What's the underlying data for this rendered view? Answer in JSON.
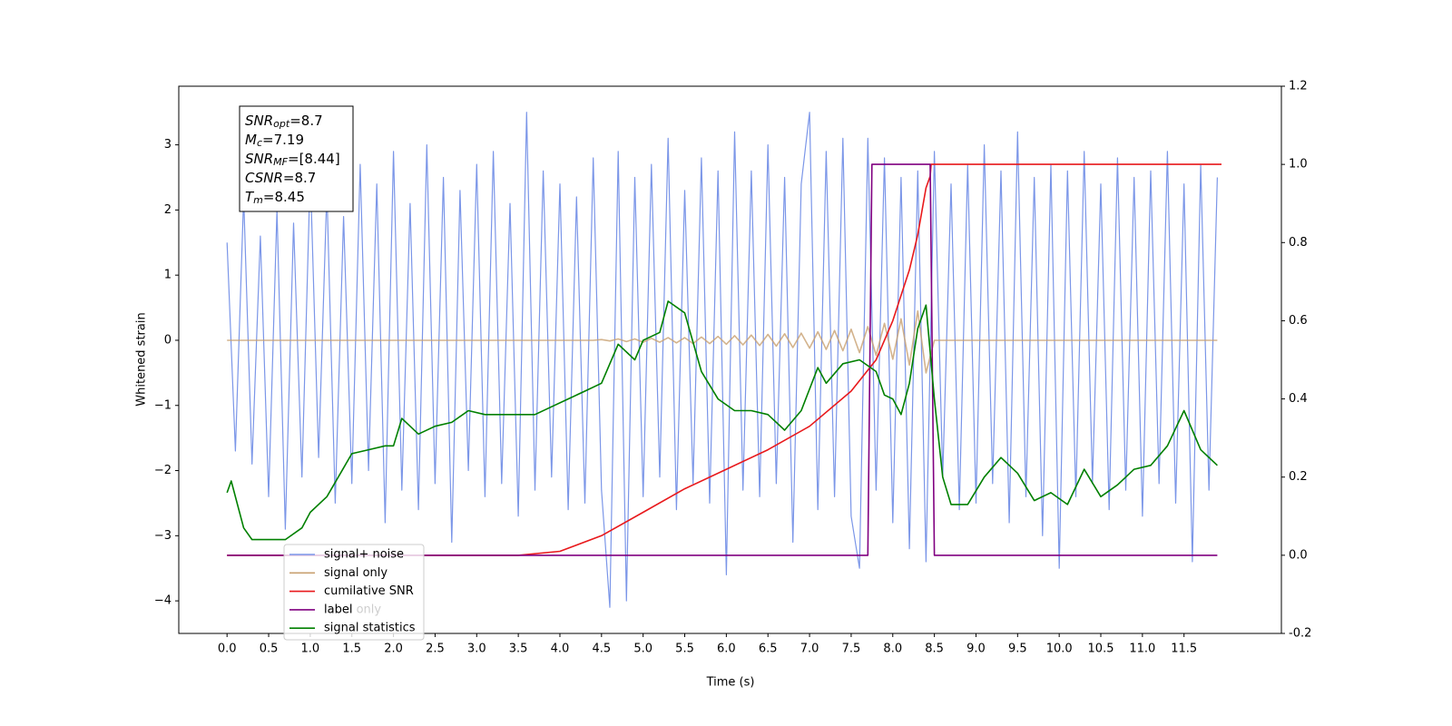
{
  "chart_data": {
    "type": "line",
    "xlabel": "Time (s)",
    "ylabel": "Whitened strain",
    "xlim": [
      -0.58,
      12.67
    ],
    "ylim": [
      -4.5,
      3.9
    ],
    "y2lim": [
      -0.2,
      1.2
    ],
    "xticks": [
      {
        "value": 0,
        "label": "0.0"
      },
      0.5,
      {
        "value": 1,
        "label": "1.0"
      },
      1.5,
      {
        "value": 2,
        "label": "2.0"
      },
      2.5,
      {
        "value": 3,
        "label": "3.0"
      },
      3.5,
      {
        "value": 4,
        "label": "4.0"
      },
      4.5,
      {
        "value": 5,
        "label": "5.0"
      },
      5.5,
      {
        "value": 6,
        "label": "6.0"
      },
      6.5,
      {
        "value": 7,
        "label": "7.0"
      },
      7.5,
      {
        "value": 8,
        "label": "8.0"
      },
      8.5,
      {
        "value": 9,
        "label": "9.0"
      },
      9.5,
      {
        "value": 10,
        "label": "10.0"
      },
      10.5,
      {
        "value": 11,
        "label": "11.0"
      },
      11.5
    ],
    "yticks": [
      {
        "value": -4,
        "label": "−4"
      },
      {
        "value": -3,
        "label": "−3"
      },
      {
        "value": -2,
        "label": "−2"
      },
      {
        "value": -1,
        "label": "−1"
      },
      0,
      1,
      2,
      3
    ],
    "y2ticks": [
      -0.2,
      {
        "value": 0,
        "label": "0.0"
      },
      0.2,
      0.4,
      0.6,
      0.8,
      {
        "value": 1,
        "label": "1.0"
      },
      1.2
    ],
    "annotation": [
      {
        "main": "SNR",
        "sub": "opt",
        "rest": "=8.7"
      },
      {
        "main": "M",
        "sub": "c",
        "rest": "=7.19"
      },
      {
        "main": "SNR",
        "sub": "MF",
        "rest": "=[8.44]"
      },
      {
        "main": "CSNR",
        "rest": "=8.7"
      },
      {
        "main": "T",
        "sub": "m",
        "rest": "=8.45"
      }
    ],
    "legend": "lower left",
    "underlying_legend": [
      "label only"
    ],
    "x": [
      0,
      0.1,
      0.2,
      0.3,
      0.4,
      0.5,
      0.6,
      0.7,
      0.8,
      0.9,
      1,
      1.1,
      1.2,
      1.3,
      1.4,
      1.5,
      1.6,
      1.7,
      1.8,
      1.9,
      2,
      2.1,
      2.2,
      2.3,
      2.4,
      2.5,
      2.6,
      2.7,
      2.8,
      2.9,
      3,
      3.1,
      3.2,
      3.3,
      3.4,
      3.5,
      3.6,
      3.7,
      3.8,
      3.9,
      4,
      4.1,
      4.2,
      4.3,
      4.4,
      4.5,
      4.6,
      4.7,
      4.8,
      4.9,
      5,
      5.1,
      5.2,
      5.3,
      5.4,
      5.5,
      5.6,
      5.7,
      5.8,
      5.9,
      6,
      6.1,
      6.2,
      6.3,
      6.4,
      6.5,
      6.6,
      6.7,
      6.8,
      6.9,
      7,
      7.1,
      7.2,
      7.3,
      7.4,
      7.5,
      7.6,
      7.7,
      7.8,
      7.9,
      8,
      8.1,
      8.2,
      8.3,
      8.4,
      8.5,
      8.6,
      8.7,
      8.8,
      8.9,
      9,
      9.1,
      9.2,
      9.3,
      9.4,
      9.5,
      9.6,
      9.7,
      9.8,
      9.9,
      10,
      10.1,
      10.2,
      10.3,
      10.4,
      10.5,
      10.6,
      10.7,
      10.8,
      10.9,
      11,
      11.1,
      11.2,
      11.3,
      11.4,
      11.5,
      11.6,
      11.7,
      11.8,
      11.9
    ],
    "series": [
      {
        "name": "signal+ noise",
        "color": "#7b96e8",
        "axis": "y",
        "values": [
          1.5,
          -1.7,
          2.2,
          -1.9,
          1.6,
          -2.4,
          2.0,
          -2.9,
          1.8,
          -2.1,
          2.6,
          -1.8,
          2.3,
          -2.5,
          1.9,
          -2.2,
          2.7,
          -2.0,
          2.4,
          -2.8,
          2.9,
          -2.3,
          2.1,
          -2.6,
          3.0,
          -2.2,
          2.5,
          -3.1,
          2.3,
          -2.0,
          2.7,
          -2.4,
          2.9,
          -2.2,
          2.1,
          -2.7,
          3.5,
          -2.3,
          2.6,
          -2.1,
          2.4,
          -2.6,
          2.2,
          -2.5,
          2.8,
          -2.3,
          -4.1,
          2.9,
          -4.0,
          2.5,
          -2.4,
          2.7,
          -2.1,
          3.1,
          -2.6,
          2.3,
          -2.2,
          2.8,
          -2.5,
          2.6,
          -3.6,
          3.2,
          -2.3,
          2.6,
          -2.4,
          3.0,
          -2.2,
          2.5,
          -3.1,
          2.4,
          3.5,
          -2.6,
          2.9,
          -2.4,
          3.1,
          -2.7,
          -3.5,
          3.1,
          -2.3,
          2.8,
          -2.8,
          2.5,
          -3.2,
          2.6,
          -3.4,
          2.9,
          -2.1,
          2.4,
          -2.6,
          2.7,
          -2.5,
          3.0,
          -2.2,
          2.6,
          -2.8,
          3.2,
          -2.4,
          2.5,
          -3.0,
          2.7,
          -3.5,
          2.6,
          -2.4,
          2.9,
          -2.2,
          2.4,
          -2.6,
          2.8,
          -2.3,
          2.5,
          -2.7,
          2.6,
          -2.2,
          2.9,
          -2.5,
          2.4,
          -3.4,
          2.7,
          -2.3,
          2.5
        ]
      },
      {
        "name": "signal only",
        "color": "#c8a070",
        "axis": "y",
        "values": [
          0,
          0,
          0,
          0,
          0,
          0,
          0,
          0,
          0,
          0,
          0,
          0,
          0,
          0,
          0,
          0,
          0,
          0,
          0,
          0,
          0,
          0,
          0,
          0,
          0,
          0,
          0,
          0,
          0,
          0,
          0,
          0,
          0,
          0,
          0,
          0,
          0,
          0,
          0,
          0,
          0,
          0,
          0,
          0,
          0,
          0.01,
          -0.01,
          0.02,
          -0.02,
          0.02,
          -0.03,
          0.03,
          -0.03,
          0.04,
          -0.04,
          0.04,
          -0.05,
          0.05,
          -0.05,
          0.06,
          -0.06,
          0.07,
          -0.07,
          0.08,
          -0.08,
          0.09,
          -0.09,
          0.1,
          -0.11,
          0.11,
          -0.12,
          0.13,
          -0.14,
          0.15,
          -0.16,
          0.17,
          -0.19,
          0.21,
          -0.23,
          0.26,
          -0.29,
          0.33,
          -0.38,
          0.45,
          -0.5,
          0,
          0,
          0,
          0,
          0,
          0,
          0,
          0,
          0,
          0,
          0,
          0,
          0,
          0,
          0,
          0,
          0,
          0,
          0,
          0,
          0,
          0,
          0,
          0,
          0,
          0,
          0,
          0,
          0,
          0,
          0,
          0,
          0,
          0,
          0
        ]
      },
      {
        "name": "cumilative SNR",
        "color": "#e8191c",
        "axis": "y2",
        "x": [
          0,
          3.5,
          4,
          4.5,
          5,
          5.5,
          6,
          6.5,
          7,
          7.5,
          7.8,
          8,
          8.2,
          8.3,
          8.4,
          8.45,
          8.46,
          11.95
        ],
        "values": [
          0,
          0,
          0.01,
          0.05,
          0.11,
          0.17,
          0.22,
          0.27,
          0.33,
          0.42,
          0.5,
          0.6,
          0.73,
          0.82,
          0.94,
          0.97,
          1,
          1
        ]
      },
      {
        "name": "label",
        "color": "#800080",
        "axis": "y2",
        "x": [
          0,
          7.7,
          7.75,
          8.45,
          8.5,
          11.9
        ],
        "values": [
          0,
          0,
          1,
          1,
          0,
          0
        ]
      },
      {
        "name": "signal statistics",
        "color": "#008000",
        "axis": "y2",
        "x": [
          0,
          0.05,
          0.2,
          0.3,
          0.5,
          0.7,
          0.9,
          1,
          1.2,
          1.5,
          1.7,
          1.9,
          2,
          2.1,
          2.3,
          2.5,
          2.7,
          2.9,
          3.1,
          3.3,
          3.5,
          3.7,
          3.9,
          4.1,
          4.3,
          4.5,
          4.6,
          4.7,
          4.9,
          5,
          5.1,
          5.2,
          5.3,
          5.5,
          5.7,
          5.9,
          6.1,
          6.3,
          6.5,
          6.7,
          6.9,
          7.1,
          7.2,
          7.4,
          7.6,
          7.8,
          7.9,
          8,
          8.1,
          8.2,
          8.3,
          8.4,
          8.5,
          8.6,
          8.7,
          8.9,
          9.1,
          9.3,
          9.5,
          9.7,
          9.9,
          10.1,
          10.3,
          10.5,
          10.7,
          10.9,
          11.1,
          11.3,
          11.5,
          11.7,
          11.9
        ],
        "values": [
          0.16,
          0.19,
          0.07,
          0.04,
          0.04,
          0.04,
          0.07,
          0.11,
          0.15,
          0.26,
          0.27,
          0.28,
          0.28,
          0.35,
          0.31,
          0.33,
          0.34,
          0.37,
          0.36,
          0.36,
          0.36,
          0.36,
          0.38,
          0.4,
          0.42,
          0.44,
          0.49,
          0.54,
          0.5,
          0.55,
          0.56,
          0.57,
          0.65,
          0.62,
          0.47,
          0.4,
          0.37,
          0.37,
          0.36,
          0.32,
          0.37,
          0.48,
          0.44,
          0.49,
          0.5,
          0.47,
          0.41,
          0.4,
          0.36,
          0.44,
          0.58,
          0.64,
          0.4,
          0.2,
          0.13,
          0.13,
          0.2,
          0.25,
          0.21,
          0.14,
          0.16,
          0.13,
          0.22,
          0.15,
          0.18,
          0.22,
          0.23,
          0.28,
          0.37,
          0.27,
          0.23
        ]
      }
    ]
  }
}
